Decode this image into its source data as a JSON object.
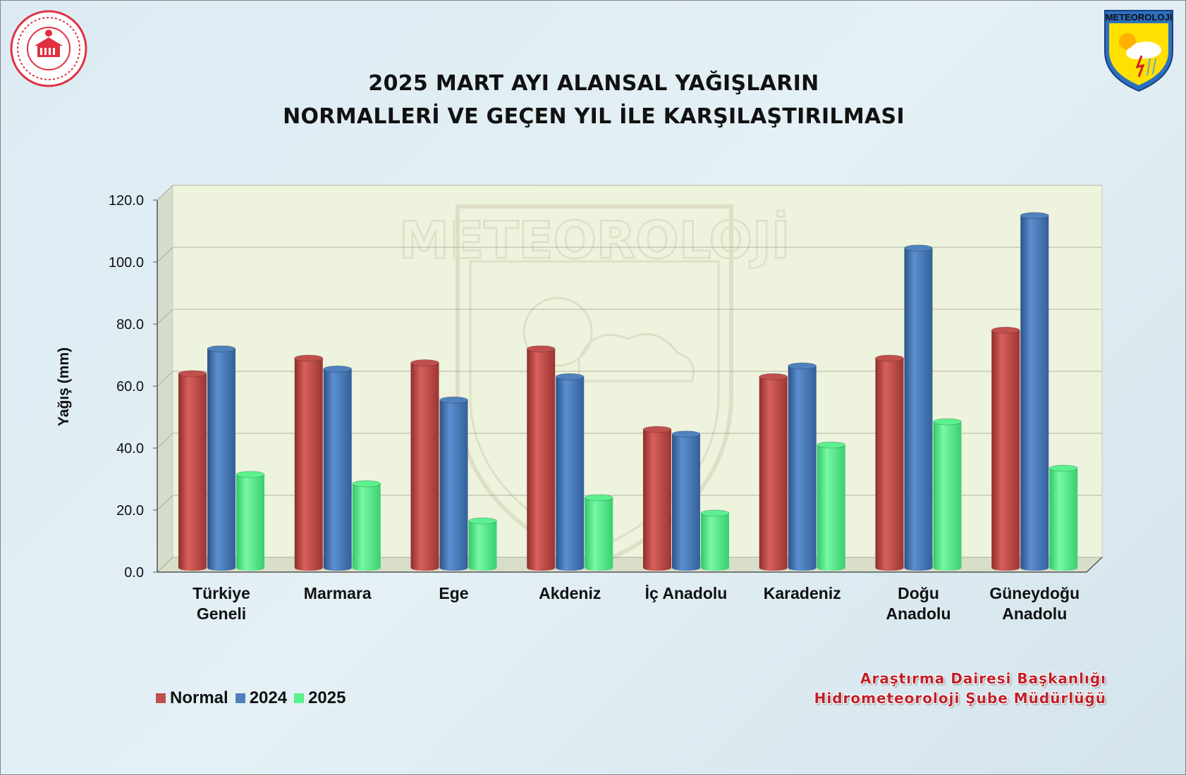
{
  "title": {
    "line1": "2025 MART AYI ALANSAL YAĞIŞLARIN",
    "line2": "NORMALLERİ VE GEÇEN YIL İLE KARŞILAŞTIRILMASI"
  },
  "logo_right_text": "METEOROLOJİ",
  "watermark_text": "METEOROLOJİ",
  "credit": {
    "line1": "Araştırma Dairesi Başkanlığı",
    "line2": "Hidrometeoroloji Şube Müdürlüğü"
  },
  "colors": {
    "normal": "#c0504d",
    "y2024": "#4f81bd",
    "y2025": "#5cf08f",
    "plot_bg": "#eef3dd",
    "credit": "#c0202a"
  },
  "icons": {
    "left_emblem": "ministry-seal-icon",
    "right_emblem": "meteoroloji-shield-icon"
  },
  "chart_data": {
    "type": "bar",
    "title": "2025 MART AYI ALANSAL YAĞIŞLARIN NORMALLERİ VE GEÇEN YIL İLE KARŞILAŞTIRILMASI",
    "ylabel": "Yağış (mm)",
    "xlabel": "",
    "ylim": [
      0,
      120
    ],
    "yticks": [
      "0.0",
      "20.0",
      "40.0",
      "60.0",
      "80.0",
      "100.0",
      "120.0"
    ],
    "grid": true,
    "legend_position": "bottom-left",
    "categories": [
      [
        "Türkiye",
        "Geneli"
      ],
      [
        "Marmara"
      ],
      [
        "Ege"
      ],
      [
        "Akdeniz"
      ],
      [
        "İç Anadolu"
      ],
      [
        "Karadeniz"
      ],
      [
        "Doğu",
        "Anadolu"
      ],
      [
        "Güneydoğu",
        "Anadolu"
      ]
    ],
    "series": [
      {
        "name": "Normal",
        "color": "#c0504d",
        "values": [
          61.5,
          66.5,
          65.0,
          69.5,
          43.5,
          60.5,
          66.5,
          75.5
        ]
      },
      {
        "name": "2024",
        "color": "#4f81bd",
        "values": [
          69.5,
          63.0,
          53.0,
          60.5,
          42.0,
          64.0,
          102.0,
          112.5
        ]
      },
      {
        "name": "2025",
        "color": "#5cf08f",
        "values": [
          29.0,
          26.0,
          14.0,
          21.5,
          16.5,
          38.5,
          46.0,
          31.0
        ]
      }
    ]
  }
}
